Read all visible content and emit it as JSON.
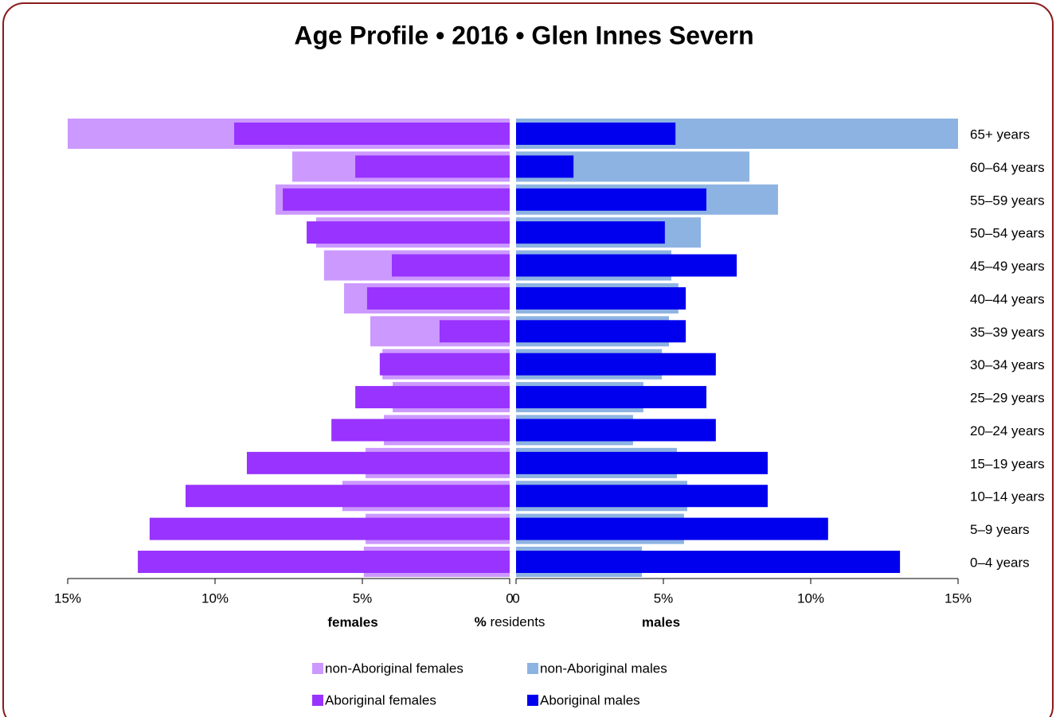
{
  "chart_data": {
    "type": "pyramid",
    "title": "Age Profile  •  2016  •  Glen Innes Severn",
    "categories": [
      "65+ years",
      "60–64 years",
      "55–59 years",
      "50–54 years",
      "45–49 years",
      "40–44 years",
      "35–39 years",
      "30–34 years",
      "25–29 years",
      "20–24 years",
      "15–19 years",
      "10–14 years",
      "5–9 years",
      "0–4 years"
    ],
    "xlabel_symbol": "%",
    "xlabel": "residents",
    "axes": [
      {
        "side": "left",
        "label": "females",
        "color": "#dd0000",
        "lim": [
          0,
          15
        ],
        "ticks": [
          {
            "value": 15,
            "label": "15%"
          },
          {
            "value": 10,
            "label": "10%"
          },
          {
            "value": 5,
            "label": "5%"
          },
          0
        ]
      },
      {
        "side": "right",
        "label": "males",
        "color": "#0000cc",
        "lim": [
          0,
          15
        ],
        "ticks": [
          0,
          {
            "value": 5,
            "label": "5%"
          },
          {
            "value": 10,
            "label": "10%"
          },
          {
            "value": 15,
            "label": "15%"
          }
        ]
      }
    ],
    "series": [
      {
        "name": "non-Aboriginal females",
        "color": "#cc99ff",
        "side": "left",
        "layer": "back",
        "values": [
          15.0,
          7.38,
          7.95,
          6.57,
          6.3,
          5.62,
          4.73,
          4.32,
          3.97,
          4.27,
          4.89,
          5.68,
          4.89,
          4.95
        ]
      },
      {
        "name": "non-Aboriginal males",
        "color": "#8db3e2",
        "side": "right",
        "layer": "back",
        "values": [
          15.0,
          7.92,
          8.89,
          6.27,
          5.27,
          5.51,
          5.19,
          4.95,
          4.32,
          3.97,
          5.46,
          5.81,
          5.7,
          4.27
        ]
      },
      {
        "name": "Aboriginal females",
        "color": "#9933ff",
        "side": "left",
        "layer": "front",
        "values": [
          9.35,
          5.24,
          7.7,
          6.89,
          4.0,
          4.84,
          2.38,
          4.41,
          5.24,
          6.05,
          8.92,
          11.0,
          12.22,
          12.62
        ]
      },
      {
        "name": "Aboriginal males",
        "color": "#0000ee",
        "side": "right",
        "layer": "front",
        "values": [
          5.41,
          1.95,
          6.46,
          5.05,
          7.49,
          5.76,
          5.76,
          6.78,
          6.46,
          6.78,
          8.54,
          8.54,
          10.59,
          13.03
        ]
      }
    ]
  }
}
